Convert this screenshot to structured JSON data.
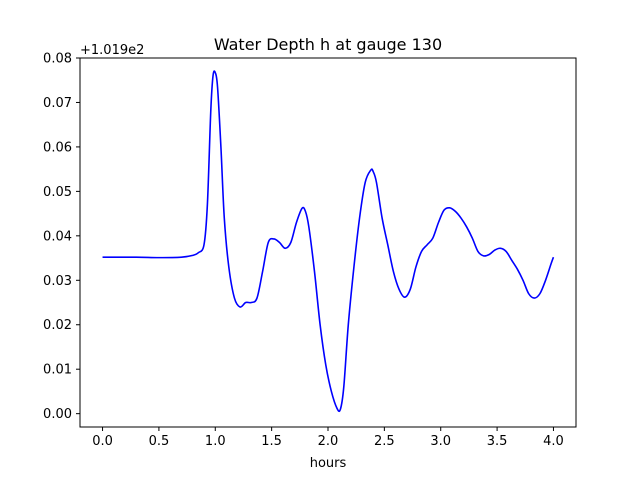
{
  "chart_data": {
    "type": "line",
    "title": "Water Depth h at gauge 130",
    "xlabel": "hours",
    "ylabel": "",
    "y_offset_label": "+1.019e2",
    "xlim": [
      -0.2,
      4.2
    ],
    "ylim": [
      -0.003,
      0.08
    ],
    "grid": false,
    "x_ticks": [
      0.0,
      0.5,
      1.0,
      1.5,
      2.0,
      2.5,
      3.0,
      3.5,
      4.0
    ],
    "x_tick_labels": [
      "0.0",
      "0.5",
      "1.0",
      "1.5",
      "2.0",
      "2.5",
      "3.0",
      "3.5",
      "4.0"
    ],
    "y_ticks": [
      0.0,
      0.01,
      0.02,
      0.03,
      0.04,
      0.05,
      0.06,
      0.07,
      0.08
    ],
    "y_tick_labels": [
      "0.00",
      "0.01",
      "0.02",
      "0.03",
      "0.04",
      "0.05",
      "0.06",
      "0.07",
      "0.08"
    ],
    "series": [
      {
        "color": "#0000ff",
        "x": [
          0.0,
          0.3,
          0.5,
          0.7,
          0.8,
          0.85,
          0.9,
          0.93,
          0.96,
          0.98,
          1.0,
          1.02,
          1.05,
          1.08,
          1.12,
          1.17,
          1.22,
          1.27,
          1.32,
          1.37,
          1.42,
          1.47,
          1.52,
          1.57,
          1.62,
          1.67,
          1.72,
          1.77,
          1.8,
          1.83,
          1.88,
          1.93,
          1.98,
          2.03,
          2.08,
          2.11,
          2.14,
          2.18,
          2.23,
          2.28,
          2.33,
          2.38,
          2.4,
          2.43,
          2.48,
          2.53,
          2.58,
          2.63,
          2.68,
          2.73,
          2.78,
          2.83,
          2.88,
          2.93,
          2.98,
          3.03,
          3.08,
          3.13,
          3.18,
          3.23,
          3.28,
          3.33,
          3.38,
          3.43,
          3.48,
          3.53,
          3.58,
          3.63,
          3.68,
          3.73,
          3.78,
          3.83,
          3.88,
          3.93,
          3.98,
          4.0
        ],
        "y": [
          0.0352,
          0.0352,
          0.0351,
          0.0352,
          0.0356,
          0.0362,
          0.038,
          0.047,
          0.068,
          0.076,
          0.0767,
          0.0735,
          0.06,
          0.044,
          0.033,
          0.026,
          0.024,
          0.025,
          0.025,
          0.026,
          0.032,
          0.0385,
          0.0393,
          0.0385,
          0.0372,
          0.0385,
          0.043,
          0.0462,
          0.0455,
          0.042,
          0.032,
          0.02,
          0.011,
          0.005,
          0.0012,
          0.001,
          0.006,
          0.02,
          0.033,
          0.044,
          0.052,
          0.0548,
          0.0545,
          0.052,
          0.044,
          0.038,
          0.032,
          0.028,
          0.0262,
          0.028,
          0.033,
          0.0365,
          0.038,
          0.0395,
          0.043,
          0.0458,
          0.0463,
          0.0455,
          0.044,
          0.042,
          0.0395,
          0.0365,
          0.0355,
          0.0358,
          0.0368,
          0.0372,
          0.0365,
          0.0345,
          0.0325,
          0.03,
          0.027,
          0.026,
          0.027,
          0.03,
          0.0338,
          0.0352
        ]
      }
    ]
  }
}
